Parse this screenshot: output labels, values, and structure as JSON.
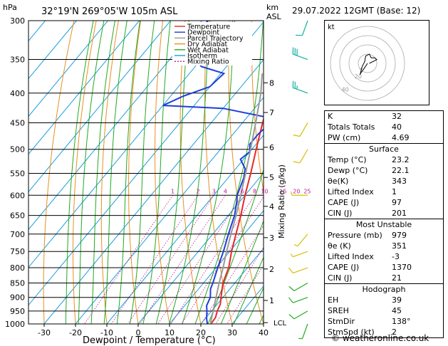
{
  "header": {
    "hpa_label": "hPa",
    "location": "32°19'N  269°05'W  105m  ASL",
    "km_label": "km",
    "asl_label": "ASL",
    "datetime": "29.07.2022  12GMT  (Base: 12)"
  },
  "legend": [
    {
      "name": "Temperature",
      "color": "#e8282a",
      "dash": false
    },
    {
      "name": "Dewpoint",
      "color": "#1f3ddb",
      "dash": false
    },
    {
      "name": "Parcel Trajectory",
      "color": "#9a9a9a",
      "dash": false
    },
    {
      "name": "Dry Adiabat",
      "color": "#e89020",
      "dash": false
    },
    {
      "name": "Wet Adiabat",
      "color": "#22aa22",
      "dash": false
    },
    {
      "name": "Isotherm",
      "color": "#1aa0e0",
      "dash": false
    },
    {
      "name": "Mixing Ratio",
      "color": "#c01890",
      "dash": true
    }
  ],
  "chart_data": {
    "type": "line",
    "xlabel": "Dewpoint / Temperature (°C)",
    "ylabel_right": "Mixing Ratio (g/kg)",
    "xlim": [
      -35,
      40
    ],
    "x_ticks": [
      -30,
      -20,
      -10,
      0,
      10,
      20,
      30,
      40
    ],
    "pressure_ticks": [
      300,
      350,
      400,
      450,
      500,
      550,
      600,
      650,
      700,
      750,
      800,
      850,
      900,
      950,
      1000
    ],
    "km_ticks": [
      {
        "km": 1,
        "p": 911
      },
      {
        "km": 2,
        "p": 804
      },
      {
        "km": 3,
        "p": 710
      },
      {
        "km": 4,
        "p": 627
      },
      {
        "km": 5,
        "p": 559
      },
      {
        "km": 6,
        "p": 496
      },
      {
        "km": 7,
        "p": 432
      },
      {
        "km": 8,
        "p": 384
      }
    ],
    "lcl": {
      "label": "LCL",
      "p": 995
    },
    "mixing_ratio_labels": [
      "1",
      "2",
      "3",
      "4",
      "6",
      "8",
      "10",
      "15",
      "20",
      "25"
    ],
    "mixing_ratios": [
      1,
      2,
      3,
      4,
      6,
      8,
      10,
      15,
      20,
      25
    ],
    "series": [
      {
        "name": "Temperature",
        "color": "#e8282a",
        "points": [
          [
            1000,
            23.2
          ],
          [
            975,
            23.0
          ],
          [
            950,
            21.8
          ],
          [
            925,
            21.0
          ],
          [
            900,
            19.4
          ],
          [
            850,
            16.2
          ],
          [
            800,
            14.0
          ],
          [
            750,
            10.6
          ],
          [
            700,
            7.4
          ],
          [
            650,
            4.0
          ],
          [
            600,
            0.0
          ],
          [
            550,
            -4.0
          ],
          [
            500,
            -8.6
          ],
          [
            450,
            -13.6
          ],
          [
            430,
            -15.6
          ],
          [
            400,
            -20.6
          ],
          [
            370,
            -25.8
          ]
        ]
      },
      {
        "name": "Dewpoint",
        "color": "#1f3ddb",
        "points": [
          [
            1000,
            22.1
          ],
          [
            980,
            20.5
          ],
          [
            950,
            18.5
          ],
          [
            930,
            17.0
          ],
          [
            900,
            16.0
          ],
          [
            870,
            13.8
          ],
          [
            850,
            13.0
          ],
          [
            820,
            11.5
          ],
          [
            790,
            10.0
          ],
          [
            750,
            8.0
          ],
          [
            700,
            5.0
          ],
          [
            650,
            2.0
          ],
          [
            615,
            -1.0
          ],
          [
            600,
            -2.5
          ],
          [
            560,
            -5.0
          ],
          [
            540,
            -7.0
          ],
          [
            520,
            -11.0
          ],
          [
            505,
            -10.0
          ],
          [
            490,
            -12.0
          ],
          [
            470,
            -12.0
          ],
          [
            450,
            -11.0
          ],
          [
            440,
            -14.0
          ],
          [
            425,
            -30.0
          ],
          [
            420,
            -50.0
          ],
          [
            405,
            -46.0
          ],
          [
            390,
            -40.0
          ],
          [
            370,
            -39.0
          ],
          [
            360,
            -48.0
          ],
          [
            330,
            -60.0
          ],
          [
            300,
            -58.0
          ]
        ]
      },
      {
        "name": "Parcel Trajectory",
        "color": "#9a9a9a",
        "points": [
          [
            1000,
            23.2
          ],
          [
            990,
            22.5
          ],
          [
            950,
            20.5
          ],
          [
            900,
            17.8
          ],
          [
            850,
            15.0
          ],
          [
            800,
            12.2
          ],
          [
            750,
            9.0
          ],
          [
            700,
            5.8
          ],
          [
            650,
            2.5
          ],
          [
            600,
            -1.4
          ],
          [
            550,
            -5.6
          ],
          [
            500,
            -10.4
          ],
          [
            450,
            -15.8
          ],
          [
            400,
            -22.0
          ],
          [
            370,
            -26.8
          ]
        ]
      }
    ]
  },
  "wind_barbs": [
    {
      "p": 1000,
      "dir": 200,
      "speed": 5
    },
    {
      "p": 950,
      "dir": 240,
      "speed": 10
    },
    {
      "p": 900,
      "dir": 250,
      "speed": 10
    },
    {
      "p": 850,
      "dir": 240,
      "speed": 10
    },
    {
      "p": 800,
      "dir": 250,
      "speed": 10
    },
    {
      "p": 750,
      "dir": 250,
      "speed": 5
    },
    {
      "p": 700,
      "dir": 220,
      "speed": 5
    },
    {
      "p": 600,
      "dir": 270,
      "speed": 5
    },
    {
      "p": 500,
      "dir": 210,
      "speed": 10
    },
    {
      "p": 450,
      "dir": 210,
      "speed": 10
    },
    {
      "p": 400,
      "dir": 290,
      "speed": 25
    },
    {
      "p": 350,
      "dir": 290,
      "speed": 30
    },
    {
      "p": 300,
      "dir": 200,
      "speed": 10
    }
  ],
  "hodograph": {
    "label": "kt",
    "rings": [
      10,
      20,
      30,
      40
    ],
    "ring_labels": [
      "20",
      "40"
    ],
    "hodo_points": [
      [
        0,
        0
      ],
      [
        -4,
        -6
      ],
      [
        -7,
        -10
      ],
      [
        -8,
        -12
      ],
      [
        -6,
        -4
      ],
      [
        -3,
        2
      ],
      [
        -2,
        8
      ],
      [
        2,
        10
      ],
      [
        4,
        6
      ],
      [
        8,
        6
      ],
      [
        10,
        4
      ],
      [
        2,
        0
      ]
    ],
    "storm_points": [
      [
        -4,
        -6
      ],
      [
        -9,
        -6
      ]
    ]
  },
  "indices": [
    {
      "key": "K",
      "value": "32"
    },
    {
      "key": "Totals Totals",
      "value": "40"
    },
    {
      "key": "PW (cm)",
      "value": "4.69"
    }
  ],
  "surface": {
    "title": "Surface",
    "rows": [
      {
        "key": "Temp (°C)",
        "value": "23.2"
      },
      {
        "key": "Dewp (°C)",
        "value": "22.1"
      },
      {
        "key": "θe(K)",
        "value": "343"
      },
      {
        "key": "Lifted Index",
        "value": "1"
      },
      {
        "key": "CAPE (J)",
        "value": "97"
      },
      {
        "key": "CIN (J)",
        "value": "201"
      }
    ]
  },
  "most_unstable": {
    "title": "Most Unstable",
    "rows": [
      {
        "key": "Pressure (mb)",
        "value": "979"
      },
      {
        "key": "θe (K)",
        "value": "351"
      },
      {
        "key": "Lifted Index",
        "value": "-3"
      },
      {
        "key": "CAPE (J)",
        "value": "1370"
      },
      {
        "key": "CIN (J)",
        "value": "21"
      }
    ]
  },
  "hodograph_stats": {
    "title": "Hodograph",
    "rows": [
      {
        "key": "EH",
        "value": "39"
      },
      {
        "key": "SREH",
        "value": "45"
      },
      {
        "key": "StmDir",
        "value": "138°"
      },
      {
        "key": "StmSpd (kt)",
        "value": "2"
      }
    ]
  },
  "copyright": "© weatheronline.co.uk"
}
